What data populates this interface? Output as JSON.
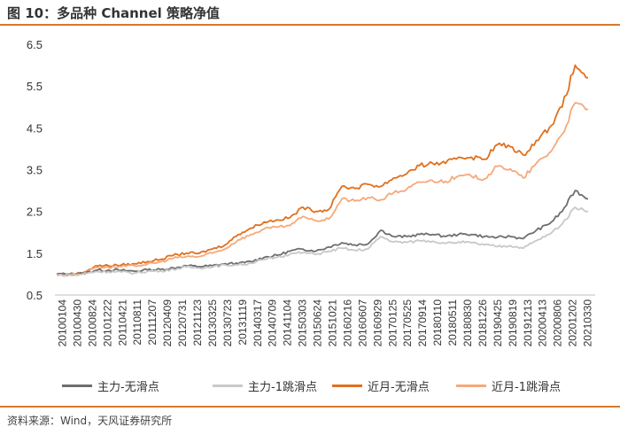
{
  "header": {
    "title": "图 10：多品种 Channel 策略净值"
  },
  "footer": {
    "source": "资料来源：Wind，天风证券研究所"
  },
  "chart_data": {
    "type": "line",
    "title": "",
    "xlabel": "",
    "ylabel": "",
    "ylim": [
      0.5,
      6.5
    ],
    "yticks": [
      0.5,
      1.5,
      2.5,
      3.5,
      4.5,
      5.5,
      6.5
    ],
    "ytick_labels": [
      "0.5",
      "1.5",
      "2.5",
      "3.5",
      "4.5",
      "5.5",
      "6.5"
    ],
    "xtick_labels": [
      "20100104",
      "20100430",
      "20100824",
      "20101222",
      "20110421",
      "20110811",
      "20111207",
      "20120409",
      "20120731",
      "20121123",
      "20130325",
      "20130723",
      "20131119",
      "20140317",
      "20140709",
      "20141104",
      "20150303",
      "20150624",
      "20151021",
      "20160216",
      "20160607",
      "20160929",
      "20170125",
      "20170525",
      "20170914",
      "20180110",
      "20180511",
      "20180830",
      "20181226",
      "20190425",
      "20190819",
      "20191213",
      "20200413",
      "20200806",
      "20201202",
      "20210330"
    ],
    "legend_position": "bottom",
    "grid": false,
    "series": [
      {
        "name": "主力-无滑点",
        "color": "#6e6e6e",
        "values": [
          1.0,
          1.0,
          1.02,
          1.09,
          1.1,
          1.09,
          1.07,
          1.1,
          1.11,
          1.15,
          1.2,
          1.18,
          1.2,
          1.25,
          1.25,
          1.3,
          1.4,
          1.45,
          1.55,
          1.6,
          1.55,
          1.65,
          1.75,
          1.7,
          1.72,
          2.05,
          1.9,
          1.9,
          1.95,
          1.95,
          1.9,
          1.95,
          1.95,
          1.9,
          1.88,
          1.9,
          1.85,
          2.05,
          2.2,
          2.5,
          3.0,
          2.8
        ]
      },
      {
        "name": "主力-1跳滑点",
        "color": "#c8c8c8",
        "values": [
          0.98,
          0.98,
          1.0,
          1.06,
          1.06,
          1.05,
          1.03,
          1.07,
          1.08,
          1.12,
          1.17,
          1.15,
          1.17,
          1.22,
          1.22,
          1.26,
          1.35,
          1.4,
          1.48,
          1.52,
          1.47,
          1.55,
          1.62,
          1.57,
          1.6,
          1.9,
          1.77,
          1.76,
          1.8,
          1.79,
          1.73,
          1.77,
          1.75,
          1.7,
          1.66,
          1.68,
          1.62,
          1.8,
          1.95,
          2.2,
          2.6,
          2.5
        ]
      },
      {
        "name": "近月-无滑点",
        "color": "#e0701e",
        "values": [
          1.0,
          1.0,
          1.03,
          1.2,
          1.2,
          1.22,
          1.25,
          1.3,
          1.35,
          1.45,
          1.5,
          1.5,
          1.6,
          1.7,
          1.95,
          2.1,
          2.25,
          2.3,
          2.35,
          2.6,
          2.5,
          2.55,
          3.1,
          3.05,
          3.15,
          3.1,
          3.3,
          3.4,
          3.6,
          3.65,
          3.65,
          3.8,
          3.8,
          3.75,
          4.1,
          4.05,
          3.85,
          4.2,
          4.5,
          5.0,
          6.0,
          5.7
        ]
      },
      {
        "name": "近月-1跳滑点",
        "color": "#f5a97a",
        "values": [
          0.98,
          0.98,
          1.01,
          1.17,
          1.16,
          1.18,
          1.2,
          1.24,
          1.29,
          1.38,
          1.42,
          1.42,
          1.5,
          1.6,
          1.82,
          1.95,
          2.08,
          2.12,
          2.16,
          2.38,
          2.28,
          2.32,
          2.8,
          2.75,
          2.83,
          2.78,
          2.95,
          3.03,
          3.2,
          3.24,
          3.22,
          3.35,
          3.34,
          3.28,
          3.58,
          3.52,
          3.3,
          3.65,
          3.9,
          4.35,
          5.1,
          4.95
        ]
      }
    ]
  }
}
